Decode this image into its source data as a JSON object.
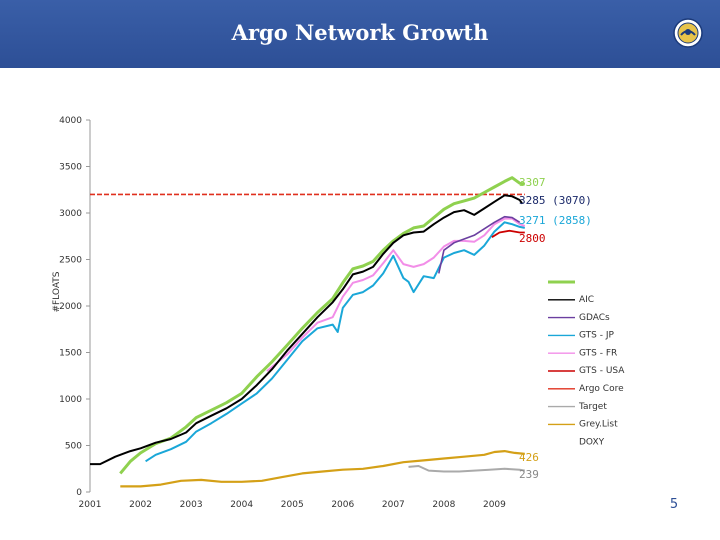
{
  "slide": {
    "title": "Argo Network Growth",
    "page_number": "5"
  },
  "colors": {
    "header": "#2d4f96",
    "AIC": "#8fd14f",
    "GDACs": "#000000",
    "GTS - JP": "#6b3fa0",
    "GTS - FR": "#1aa7d8",
    "GTS - USA": "#f28ee8",
    "Argo Core": "#cc0000",
    "Target": "#e0301e",
    "Grey List": "#aaaaaa",
    "DOXY": "#d4a017"
  },
  "chart_data": {
    "type": "line",
    "title": "Argo Network Growth",
    "xlabel": "",
    "ylabel": "#FLOATS",
    "xlim": [
      2001,
      2010
    ],
    "ylim": [
      0,
      4000
    ],
    "x_ticks": [
      "2001",
      "2002",
      "2003",
      "2004",
      "2005",
      "2006",
      "2007",
      "2008",
      "2009"
    ],
    "y_ticks": [
      "0",
      "500",
      "1000",
      "1500",
      "2000",
      "2500",
      "3000",
      "3500",
      "4000"
    ],
    "legend_position": "right",
    "target_value": 3200,
    "series": [
      {
        "name": "AIC",
        "points": [
          [
            2001.6,
            200
          ],
          [
            2001.8,
            330
          ],
          [
            2002.0,
            420
          ],
          [
            2002.3,
            520
          ],
          [
            2002.6,
            580
          ],
          [
            2002.9,
            700
          ],
          [
            2003.1,
            800
          ],
          [
            2003.4,
            880
          ],
          [
            2003.7,
            960
          ],
          [
            2004.0,
            1060
          ],
          [
            2004.3,
            1240
          ],
          [
            2004.6,
            1400
          ],
          [
            2004.9,
            1580
          ],
          [
            2005.2,
            1760
          ],
          [
            2005.5,
            1930
          ],
          [
            2005.8,
            2080
          ],
          [
            2006.0,
            2250
          ],
          [
            2006.2,
            2400
          ],
          [
            2006.4,
            2430
          ],
          [
            2006.6,
            2480
          ],
          [
            2006.8,
            2600
          ],
          [
            2007.0,
            2700
          ],
          [
            2007.2,
            2780
          ],
          [
            2007.4,
            2840
          ],
          [
            2007.6,
            2860
          ],
          [
            2007.8,
            2950
          ],
          [
            2008.0,
            3040
          ],
          [
            2008.2,
            3100
          ],
          [
            2008.4,
            3130
          ],
          [
            2008.6,
            3160
          ],
          [
            2008.8,
            3220
          ],
          [
            2009.0,
            3280
          ],
          [
            2009.2,
            3340
          ],
          [
            2009.35,
            3380
          ],
          [
            2009.5,
            3320
          ],
          [
            2009.6,
            3310
          ]
        ]
      },
      {
        "name": "GDACs",
        "points": [
          [
            2001.0,
            300
          ],
          [
            2001.2,
            300
          ],
          [
            2001.5,
            380
          ],
          [
            2001.8,
            440
          ],
          [
            2002.0,
            470
          ],
          [
            2002.3,
            530
          ],
          [
            2002.6,
            570
          ],
          [
            2002.9,
            640
          ],
          [
            2003.1,
            740
          ],
          [
            2003.4,
            820
          ],
          [
            2003.7,
            900
          ],
          [
            2004.0,
            1000
          ],
          [
            2004.3,
            1150
          ],
          [
            2004.6,
            1320
          ],
          [
            2004.9,
            1520
          ],
          [
            2005.2,
            1700
          ],
          [
            2005.5,
            1880
          ],
          [
            2005.8,
            2040
          ],
          [
            2006.0,
            2180
          ],
          [
            2006.2,
            2340
          ],
          [
            2006.4,
            2370
          ],
          [
            2006.6,
            2420
          ],
          [
            2006.8,
            2560
          ],
          [
            2007.0,
            2680
          ],
          [
            2007.2,
            2760
          ],
          [
            2007.4,
            2790
          ],
          [
            2007.6,
            2800
          ],
          [
            2007.8,
            2880
          ],
          [
            2008.0,
            2950
          ],
          [
            2008.2,
            3010
          ],
          [
            2008.4,
            3030
          ],
          [
            2008.6,
            2980
          ],
          [
            2008.8,
            3050
          ],
          [
            2009.0,
            3120
          ],
          [
            2009.2,
            3190
          ],
          [
            2009.35,
            3180
          ],
          [
            2009.5,
            3140
          ],
          [
            2009.55,
            3100
          ]
        ]
      },
      {
        "name": "GTS - JP",
        "points": [
          [
            2007.9,
            2350
          ],
          [
            2008.0,
            2600
          ],
          [
            2008.2,
            2680
          ],
          [
            2008.4,
            2720
          ],
          [
            2008.6,
            2760
          ],
          [
            2008.8,
            2830
          ],
          [
            2009.0,
            2900
          ],
          [
            2009.2,
            2960
          ],
          [
            2009.35,
            2950
          ],
          [
            2009.5,
            2900
          ]
        ]
      },
      {
        "name": "GTS - FR",
        "points": [
          [
            2002.1,
            330
          ],
          [
            2002.3,
            400
          ],
          [
            2002.6,
            460
          ],
          [
            2002.9,
            540
          ],
          [
            2003.1,
            650
          ],
          [
            2003.4,
            740
          ],
          [
            2003.7,
            840
          ],
          [
            2004.0,
            950
          ],
          [
            2004.3,
            1060
          ],
          [
            2004.6,
            1220
          ],
          [
            2004.9,
            1420
          ],
          [
            2005.2,
            1620
          ],
          [
            2005.5,
            1760
          ],
          [
            2005.8,
            1800
          ],
          [
            2005.9,
            1720
          ],
          [
            2006.0,
            1980
          ],
          [
            2006.2,
            2120
          ],
          [
            2006.4,
            2150
          ],
          [
            2006.6,
            2220
          ],
          [
            2006.8,
            2350
          ],
          [
            2007.0,
            2540
          ],
          [
            2007.2,
            2300
          ],
          [
            2007.3,
            2260
          ],
          [
            2007.4,
            2150
          ],
          [
            2007.6,
            2320
          ],
          [
            2007.8,
            2300
          ],
          [
            2008.0,
            2520
          ],
          [
            2008.2,
            2570
          ],
          [
            2008.4,
            2600
          ],
          [
            2008.6,
            2550
          ],
          [
            2008.8,
            2650
          ],
          [
            2009.0,
            2800
          ],
          [
            2009.2,
            2900
          ],
          [
            2009.35,
            2880
          ],
          [
            2009.5,
            2850
          ],
          [
            2009.6,
            2840
          ]
        ]
      },
      {
        "name": "GTS - USA",
        "points": [
          [
            2004.5,
            1300
          ],
          [
            2004.9,
            1480
          ],
          [
            2005.2,
            1660
          ],
          [
            2005.5,
            1820
          ],
          [
            2005.8,
            1880
          ],
          [
            2006.0,
            2100
          ],
          [
            2006.2,
            2250
          ],
          [
            2006.4,
            2280
          ],
          [
            2006.6,
            2330
          ],
          [
            2006.8,
            2460
          ],
          [
            2007.0,
            2600
          ],
          [
            2007.2,
            2450
          ],
          [
            2007.4,
            2420
          ],
          [
            2007.6,
            2450
          ],
          [
            2007.8,
            2520
          ],
          [
            2008.0,
            2640
          ],
          [
            2008.2,
            2700
          ],
          [
            2008.4,
            2700
          ],
          [
            2008.6,
            2690
          ],
          [
            2008.8,
            2760
          ],
          [
            2009.0,
            2880
          ],
          [
            2009.2,
            2940
          ],
          [
            2009.35,
            2940
          ],
          [
            2009.5,
            2880
          ],
          [
            2009.6,
            2860
          ]
        ]
      },
      {
        "name": "Argo Core",
        "points": [
          [
            2008.95,
            2740
          ],
          [
            2009.1,
            2790
          ],
          [
            2009.3,
            2810
          ],
          [
            2009.5,
            2790
          ],
          [
            2009.6,
            2790
          ]
        ]
      },
      {
        "name": "Target",
        "points": [
          [
            2001.0,
            3200
          ],
          [
            2009.6,
            3200
          ]
        ],
        "dashed": true
      },
      {
        "name": "Grey List",
        "points": [
          [
            2007.3,
            270
          ],
          [
            2007.5,
            280
          ],
          [
            2007.7,
            230
          ],
          [
            2008.0,
            220
          ],
          [
            2008.3,
            220
          ],
          [
            2008.6,
            230
          ],
          [
            2008.9,
            240
          ],
          [
            2009.2,
            250
          ],
          [
            2009.5,
            240
          ],
          [
            2009.6,
            230
          ]
        ]
      },
      {
        "name": "DOXY",
        "points": [
          [
            2001.6,
            60
          ],
          [
            2002.0,
            60
          ],
          [
            2002.4,
            80
          ],
          [
            2002.8,
            120
          ],
          [
            2003.2,
            130
          ],
          [
            2003.6,
            110
          ],
          [
            2004.0,
            110
          ],
          [
            2004.4,
            120
          ],
          [
            2004.8,
            160
          ],
          [
            2005.2,
            200
          ],
          [
            2005.6,
            220
          ],
          [
            2006.0,
            240
          ],
          [
            2006.4,
            250
          ],
          [
            2006.8,
            280
          ],
          [
            2007.2,
            320
          ],
          [
            2007.6,
            340
          ],
          [
            2008.0,
            360
          ],
          [
            2008.4,
            380
          ],
          [
            2008.8,
            400
          ],
          [
            2009.0,
            430
          ],
          [
            2009.2,
            440
          ],
          [
            2009.4,
            420
          ],
          [
            2009.6,
            410
          ]
        ]
      }
    ],
    "annotations": {
      "aic": "3307",
      "gdacs": "3285 (3070)",
      "gts": "3271   (2858)",
      "core": "2800",
      "doxy": "426",
      "grey": "239"
    }
  }
}
